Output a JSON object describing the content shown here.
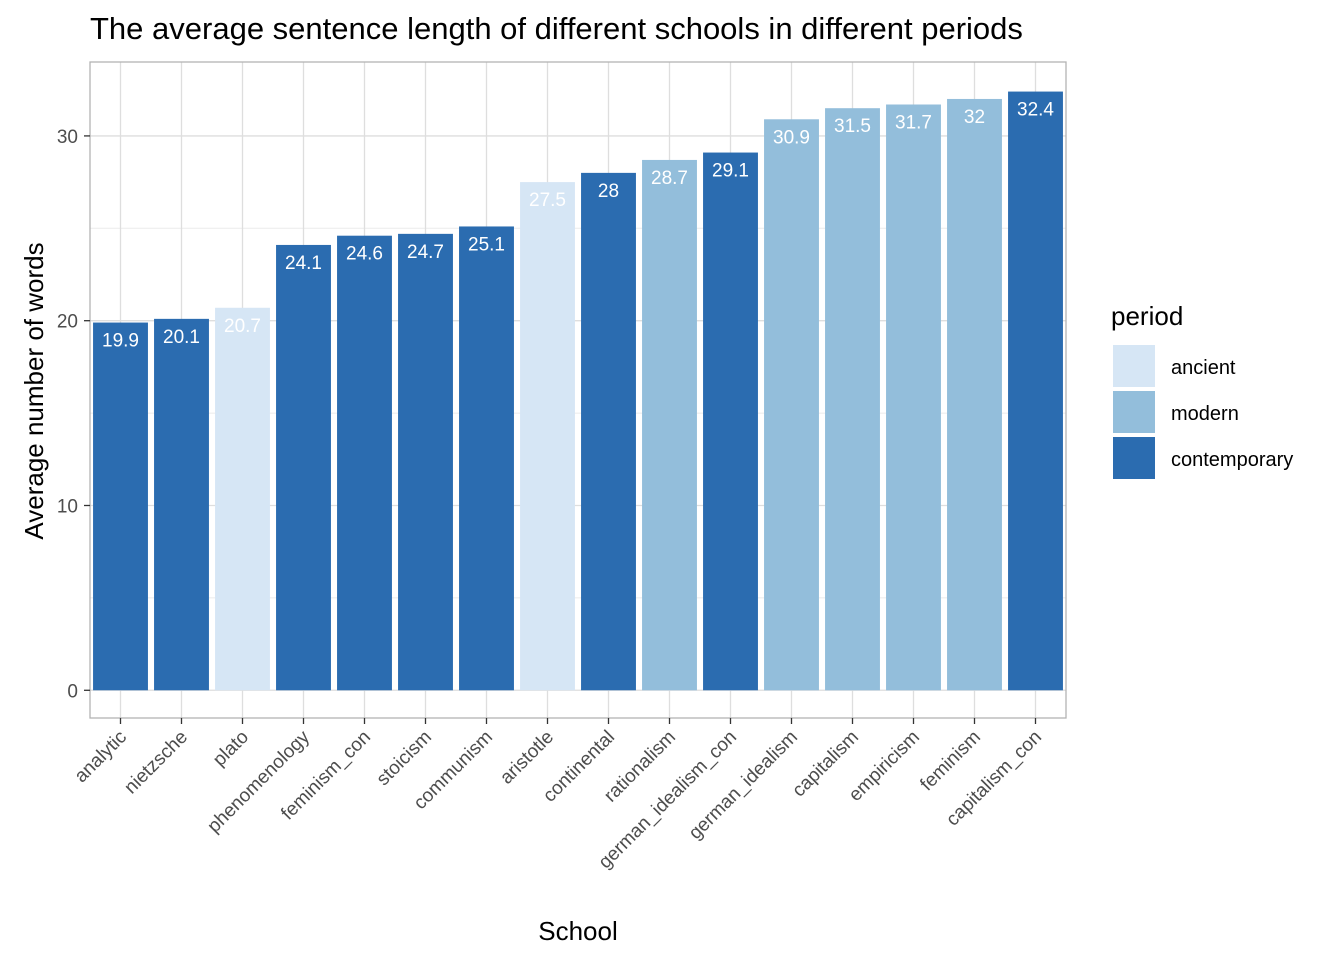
{
  "chart_data": {
    "type": "bar",
    "title": "The average sentence length of different schools in different periods",
    "xlabel": "School",
    "ylabel": "Average number of words",
    "ylim": [
      -1.5,
      34
    ],
    "yticks": [
      0,
      10,
      20,
      30
    ],
    "grid": true,
    "legend": {
      "title": "period",
      "placement": "right",
      "entries": [
        {
          "name": "ancient",
          "color": "#d6e6f5"
        },
        {
          "name": "modern",
          "color": "#93bedb"
        },
        {
          "name": "contemporary",
          "color": "#2b6cb0"
        }
      ]
    },
    "categories": [
      "analytic",
      "nietzsche",
      "plato",
      "phenomenology",
      "feminism_con",
      "stoicism",
      "communism",
      "aristotle",
      "continental",
      "rationalism",
      "german_idealism_con",
      "german_idealism",
      "capitalism",
      "empiricism",
      "feminism",
      "capitalism_con"
    ],
    "values": [
      19.9,
      20.1,
      20.7,
      24.1,
      24.6,
      24.7,
      25.1,
      27.5,
      28,
      28.7,
      29.1,
      30.9,
      31.5,
      31.7,
      32,
      32.4
    ],
    "labels": [
      "19.9",
      "20.1",
      "20.7",
      "24.1",
      "24.6",
      "24.7",
      "25.1",
      "27.5",
      "28",
      "28.7",
      "29.1",
      "30.9",
      "31.5",
      "31.7",
      "32",
      "32.4"
    ],
    "periods": [
      "contemporary",
      "contemporary",
      "ancient",
      "contemporary",
      "contemporary",
      "contemporary",
      "contemporary",
      "ancient",
      "contemporary",
      "modern",
      "contemporary",
      "modern",
      "modern",
      "modern",
      "modern",
      "contemporary"
    ]
  }
}
